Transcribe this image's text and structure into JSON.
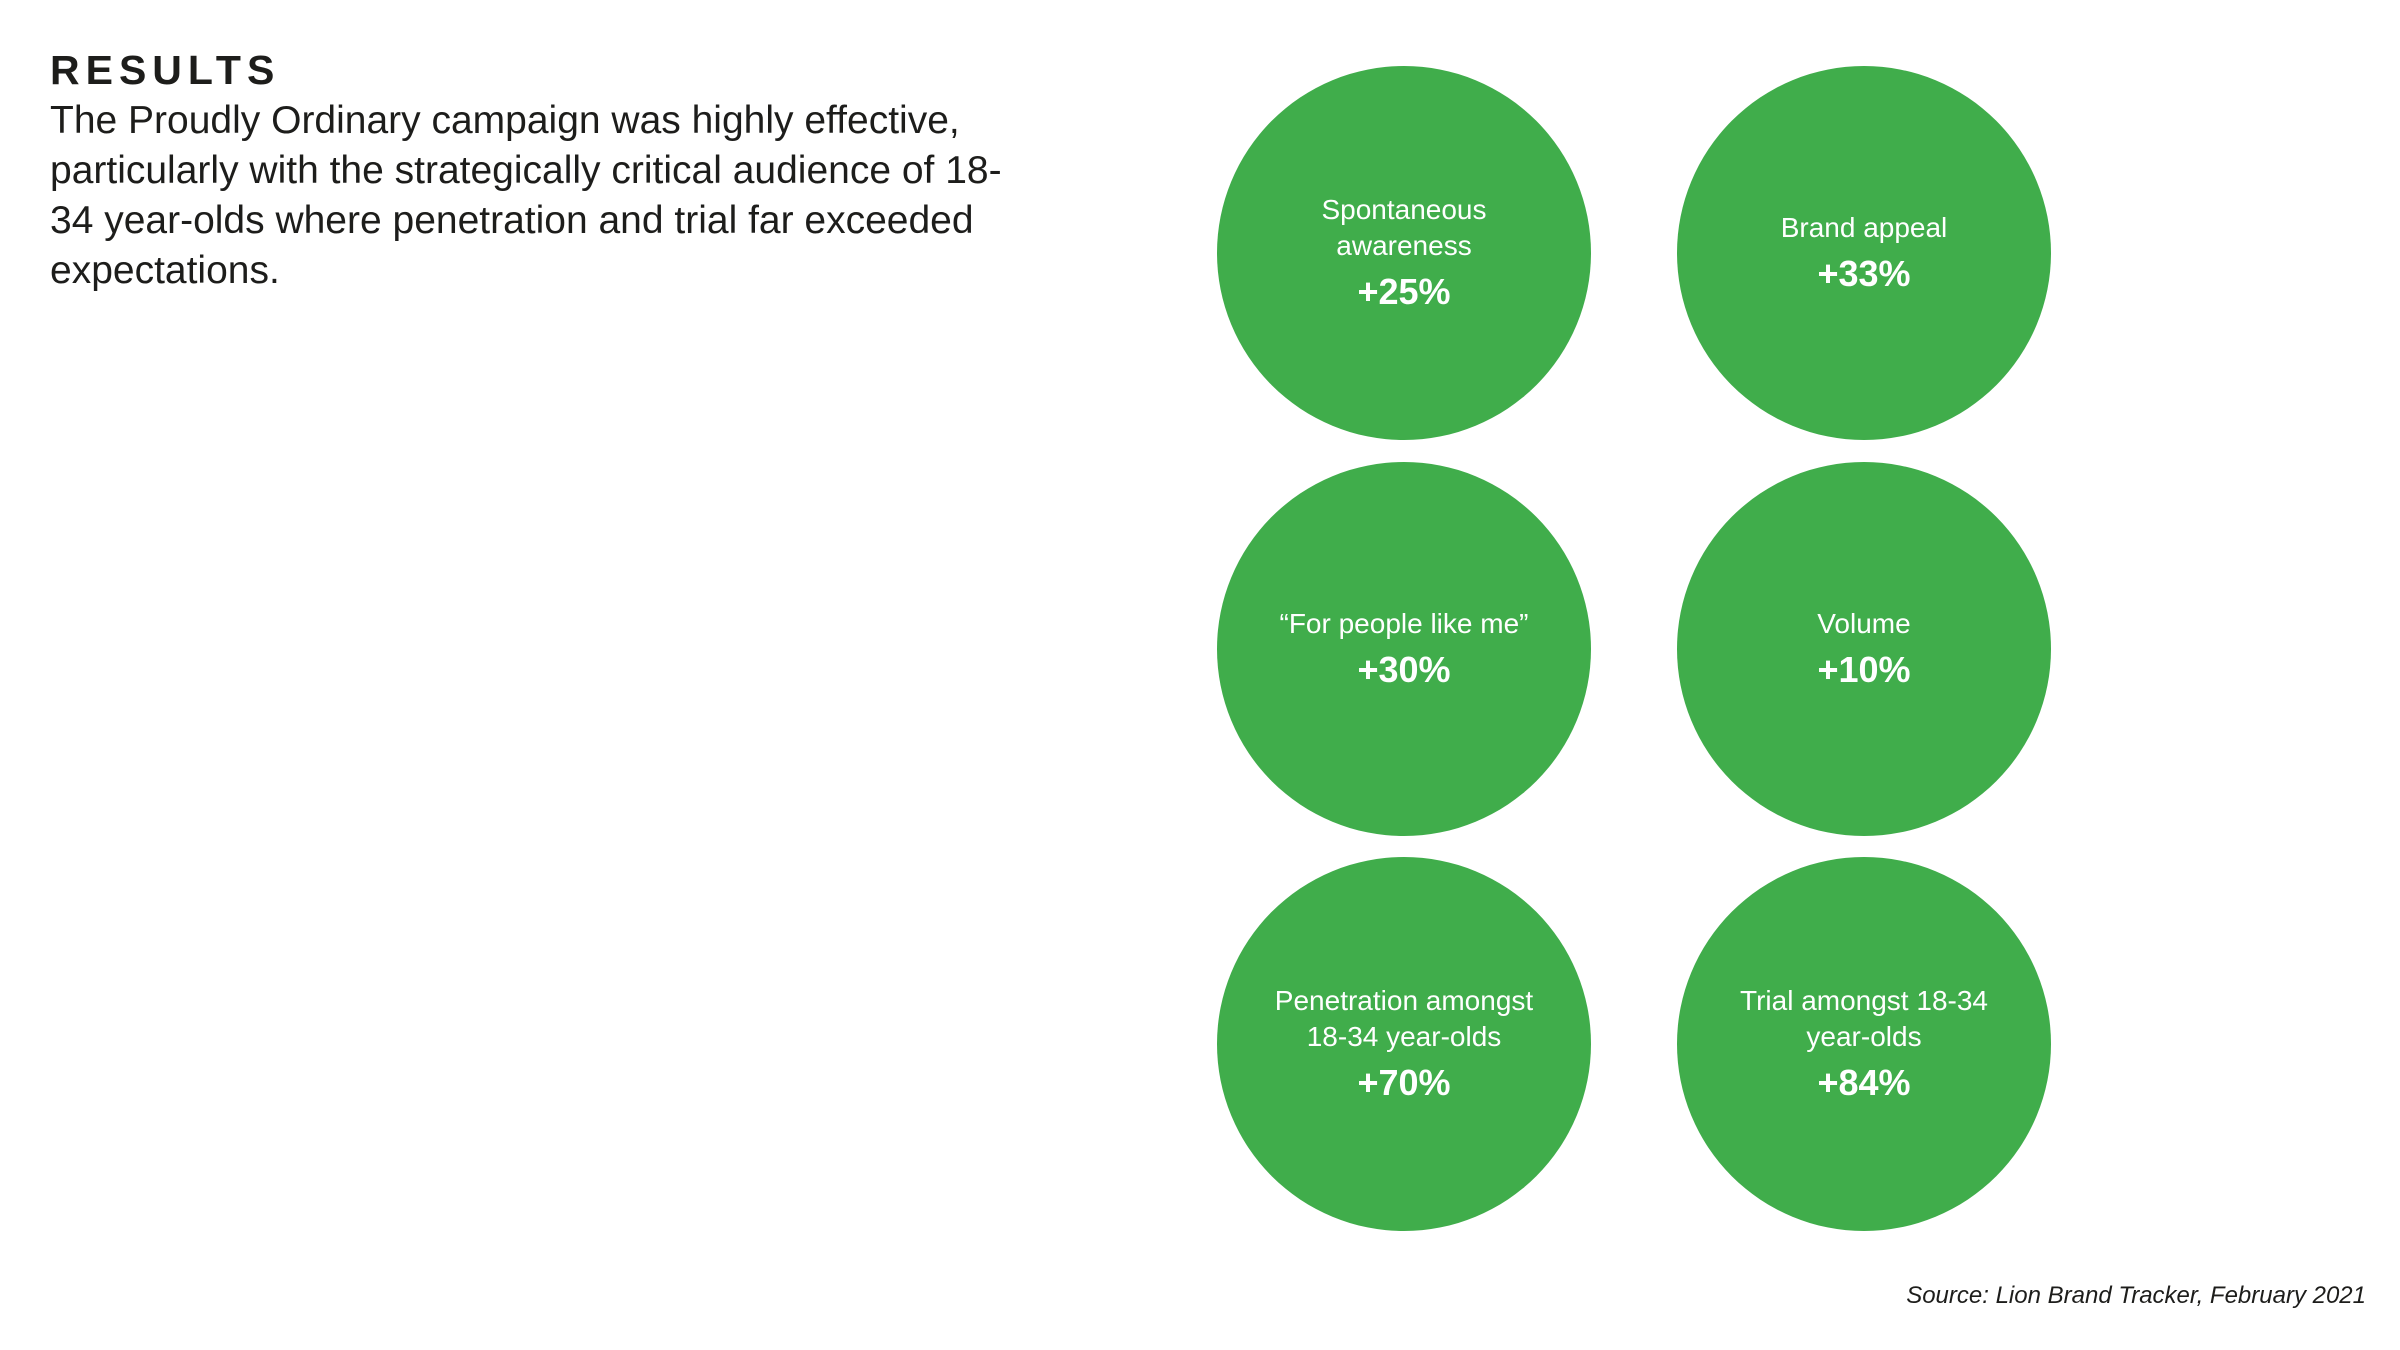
{
  "heading": "RESULTS",
  "intro": "The Proudly Ordinary campaign was highly effective, particularly with the strategically critical audience of 18-34 year-olds where penetration and trial far exceeded expectations.",
  "accent_color": "#40ad4b",
  "metrics": [
    {
      "label": "Spontaneous awareness",
      "value": "+25%"
    },
    {
      "label": "Brand appeal",
      "value": "+33%"
    },
    {
      "label": "“For people like me”",
      "value": "+30%"
    },
    {
      "label": "Volume",
      "value": "+10%"
    },
    {
      "label": "Penetration amongst 18-34 year-olds",
      "value": "+70%"
    },
    {
      "label": "Trial amongst 18-34 year-olds",
      "value": "+84%"
    }
  ],
  "source": "Source: Lion Brand Tracker, February 2021"
}
